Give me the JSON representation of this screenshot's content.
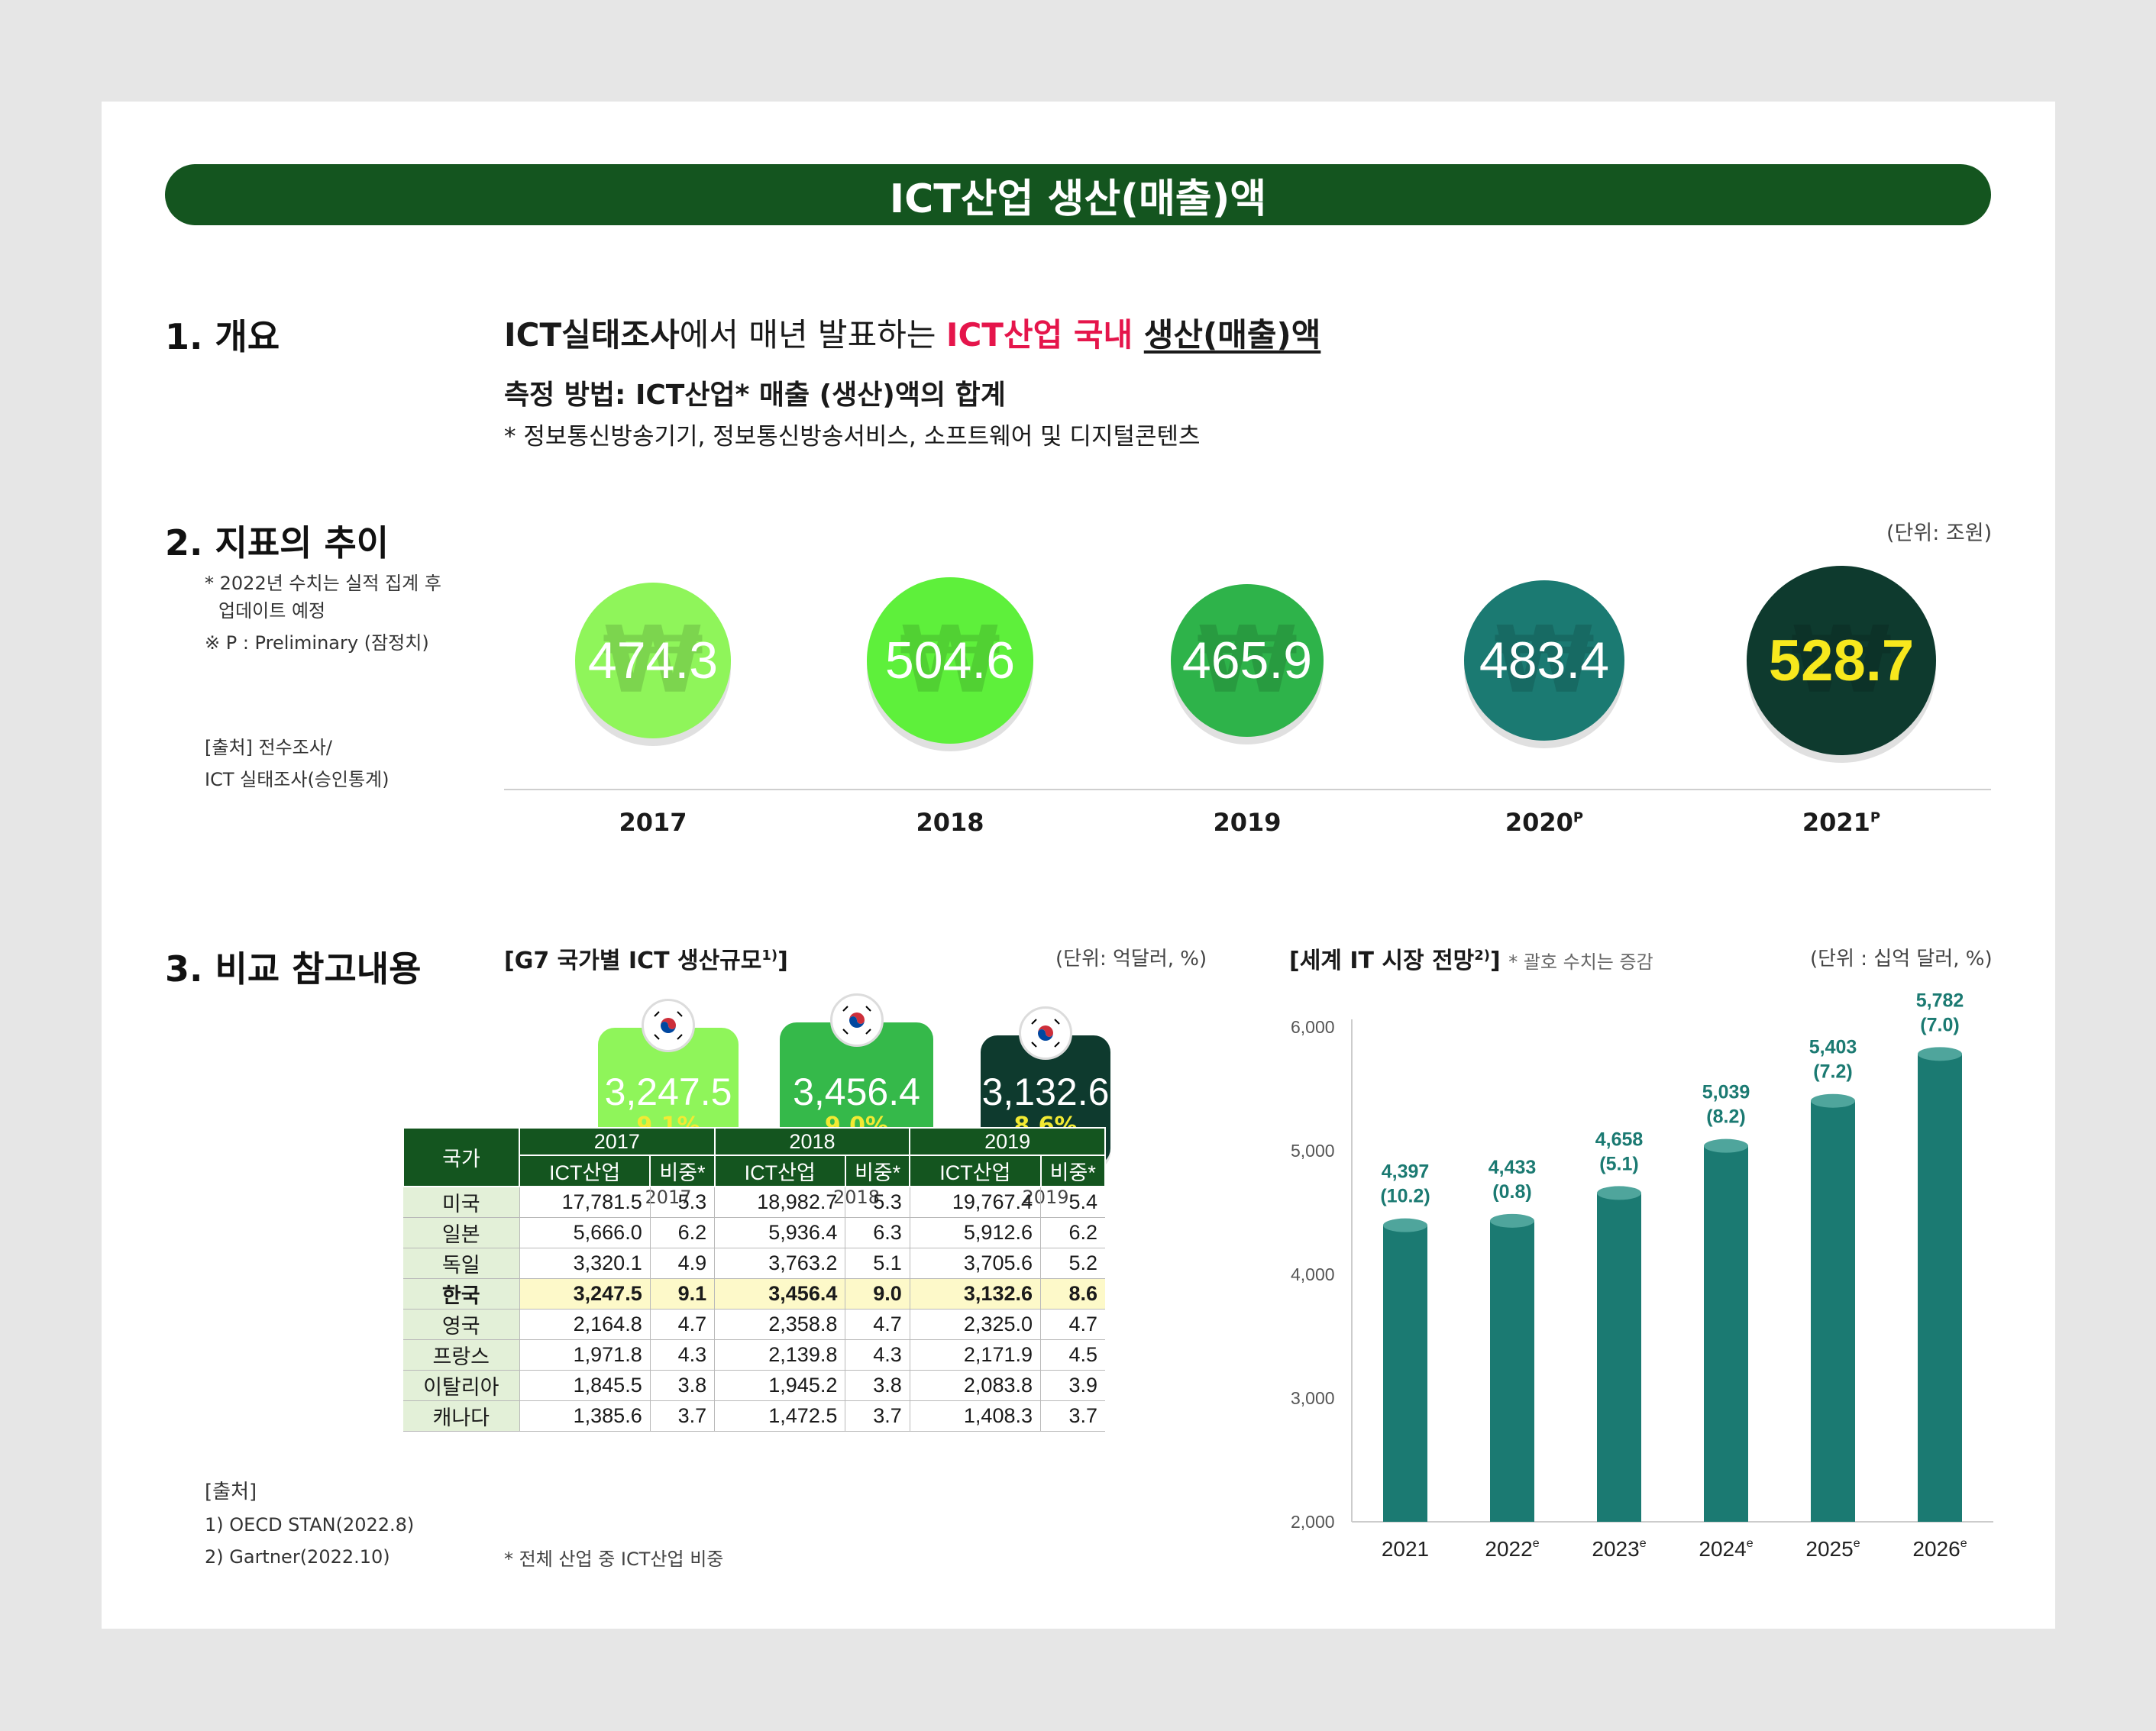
{
  "title": "ICT산업 생산(매출)액",
  "overview": {
    "heading": "1. 개요",
    "line1_a": "ICT실태조사",
    "line1_b": "에서 매년 발표하는 ",
    "line1_c": "ICT산업 국내",
    "line1_d": "생산(매출)액",
    "line2": "측정 방법: ICT산업* 매출 (생산)액의 합계",
    "line3": "* 정보통신방송기기, 정보통신방송서비스, 소프트웨어 및 디지털콘텐츠"
  },
  "trend": {
    "heading": "2. 지표의 추이",
    "note1": "* 2022년 수치는 실적 집계 후",
    "note2": "업데이트 예정",
    "note3": "※ P : Preliminary (잠정치)",
    "source1": "[출처] 전수조사/",
    "source2": "ICT 실태조사(승인통계)",
    "unit": "(단위: 조원)",
    "won_symbol": "₩",
    "items": [
      {
        "year": "2017",
        "sup": "",
        "value": "474.3",
        "color": "#8ff55a"
      },
      {
        "year": "2018",
        "sup": "",
        "value": "504.6",
        "color": "#5ef03b"
      },
      {
        "year": "2019",
        "sup": "",
        "value": "465.9",
        "color": "#2eb34a"
      },
      {
        "year": "2020",
        "sup": "P",
        "value": "483.4",
        "color": "#1b7a72"
      },
      {
        "year": "2021",
        "sup": "P",
        "value": "528.7",
        "color": "#0e3a2e"
      }
    ]
  },
  "compare": {
    "heading": "3. 비교 참고내용",
    "source_title": "[출처]",
    "source1": "1) OECD STAN(2022.8)",
    "source2": "2) Gartner(2022.10)",
    "g7": {
      "title": "[G7 국가별 ICT 생산규모",
      "title_sup": "1)",
      "title_end": "]",
      "unit": "(단위: 억달러, %)",
      "korea_boxes": [
        {
          "year": "2017",
          "value": "3,247.5",
          "pct": "9.1%",
          "color": "#8ff55a"
        },
        {
          "year": "2018",
          "value": "3,456.4",
          "pct": "9.0%",
          "color": "#35b94a"
        },
        {
          "year": "2019",
          "value": "3,132.6",
          "pct": "8.6%",
          "color": "#0e3a2e"
        }
      ],
      "table_header_country": "국가",
      "table_years": [
        "2017",
        "2018",
        "2019"
      ],
      "table_sub": [
        "ICT산업",
        "비중*"
      ],
      "rows": [
        {
          "country": "미국",
          "v": [
            "17,781.5",
            "5.3",
            "18,982.7",
            "5.3",
            "19,767.4",
            "5.4"
          ]
        },
        {
          "country": "일본",
          "v": [
            "5,666.0",
            "6.2",
            "5,936.4",
            "6.3",
            "5,912.6",
            "6.2"
          ]
        },
        {
          "country": "독일",
          "v": [
            "3,320.1",
            "4.9",
            "3,763.2",
            "5.1",
            "3,705.6",
            "5.2"
          ]
        },
        {
          "country": "한국",
          "v": [
            "3,247.5",
            "9.1",
            "3,456.4",
            "9.0",
            "3,132.6",
            "8.6"
          ]
        },
        {
          "country": "영국",
          "v": [
            "2,164.8",
            "4.7",
            "2,358.8",
            "4.7",
            "2,325.0",
            "4.7"
          ]
        },
        {
          "country": "프랑스",
          "v": [
            "1,971.8",
            "4.3",
            "2,139.8",
            "4.3",
            "2,171.9",
            "4.5"
          ]
        },
        {
          "country": "이탈리아",
          "v": [
            "1,845.5",
            "3.8",
            "1,945.2",
            "3.8",
            "2,083.8",
            "3.9"
          ]
        },
        {
          "country": "캐나다",
          "v": [
            "1,385.6",
            "3.7",
            "1,472.5",
            "3.7",
            "1,408.3",
            "3.7"
          ]
        }
      ],
      "footnote": "* 전체 산업 중 ICT산업 비중"
    },
    "world": {
      "title": "[세계 IT 시장 전망",
      "title_sup": "2)",
      "title_end": "]",
      "title_note": "* 괄호 수치는 증감",
      "unit": "(단위 : 십억 달러, %)"
    }
  },
  "chart_data": {
    "type": "bar",
    "categories": [
      "2021",
      "2022e",
      "2023e",
      "2024e",
      "2025e",
      "2026e"
    ],
    "category_labels": [
      "2021",
      "2022",
      "2023",
      "2024",
      "2025",
      "2026"
    ],
    "category_sups": [
      "",
      "e",
      "e",
      "e",
      "e",
      "e"
    ],
    "values": [
      4397,
      4433,
      4658,
      5039,
      5403,
      5782
    ],
    "value_labels": [
      "4,397",
      "4,433",
      "4,658",
      "5,039",
      "5,403",
      "5,782"
    ],
    "growth_labels": [
      "(10.2)",
      "(0.8)",
      "(5.1)",
      "(8.2)",
      "(7.2)",
      "(7.0)"
    ],
    "ylim": [
      2000,
      6000
    ],
    "yticks": [
      "2,000",
      "3,000",
      "4,000",
      "5,000",
      "6,000"
    ],
    "bar_color": "#1b7a72",
    "label_color": "#1b7a72"
  }
}
